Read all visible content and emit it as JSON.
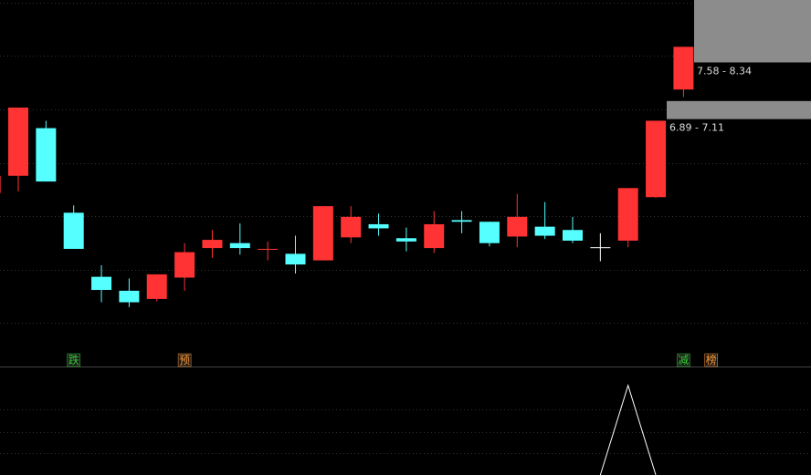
{
  "chart_data": {
    "type": "candlestick",
    "categories": [
      null,
      null,
      null,
      null,
      null,
      null,
      null,
      null,
      null,
      null,
      null,
      null,
      null,
      null,
      null,
      null,
      null,
      null,
      null,
      null,
      null,
      null,
      null,
      null,
      null,
      null,
      null
    ],
    "open": [
      5.99,
      6.2,
      6.78,
      5.75,
      4.97,
      4.8,
      4.7,
      4.96,
      5.32,
      5.38,
      5.3,
      5.25,
      5.17,
      5.45,
      5.61,
      5.44,
      5.32,
      5.66,
      5.64,
      5.46,
      5.58,
      5.54,
      5.33,
      5.41,
      5.94,
      7.25,
      null
    ],
    "high": [
      6.2,
      7.03,
      6.87,
      5.84,
      5.11,
      4.95,
      5.0,
      5.38,
      5.54,
      5.62,
      5.4,
      5.47,
      5.83,
      5.83,
      5.74,
      5.57,
      5.77,
      5.77,
      5.64,
      5.98,
      5.88,
      5.7,
      5.5,
      6.05,
      6.87,
      7.77,
      null
    ],
    "low": [
      5.84,
      6.01,
      6.13,
      5.31,
      4.66,
      4.6,
      4.67,
      4.8,
      5.2,
      5.24,
      5.17,
      5.01,
      5.17,
      5.38,
      5.47,
      5.28,
      5.26,
      5.5,
      5.34,
      5.33,
      5.43,
      5.38,
      5.16,
      5.33,
      5.93,
      7.16,
      null
    ],
    "close": [
      6.2,
      7.03,
      6.13,
      5.31,
      4.81,
      4.66,
      5.0,
      5.27,
      5.42,
      5.32,
      5.31,
      5.12,
      5.83,
      5.7,
      5.56,
      5.4,
      5.61,
      5.64,
      5.38,
      5.7,
      5.47,
      5.41,
      5.33,
      6.05,
      6.87,
      7.77,
      null
    ],
    "up_color": "#ff3333",
    "down_color": "#55ffff",
    "flat_color": "#ffffff",
    "ylim": [
      3.9,
      8.34
    ],
    "zones": [
      {
        "low": 7.58,
        "high": 8.34,
        "label": "7.58 - 8.34"
      },
      {
        "low": 6.89,
        "high": 7.11,
        "label": "6.89 - 7.11"
      }
    ],
    "signals": [
      {
        "index": 3,
        "label": "跌",
        "color": "#33cc33"
      },
      {
        "index": 7,
        "label": "预",
        "color": "#ff9933"
      },
      {
        "index": 25,
        "label": "减",
        "color": "#33cc33"
      },
      {
        "index": 26,
        "label": "榜",
        "color": "#ff9933"
      }
    ],
    "indicator": {
      "values": [
        null,
        null,
        null,
        null,
        null,
        null,
        null,
        null,
        null,
        null,
        null,
        null,
        null,
        null,
        null,
        null,
        null,
        null,
        null,
        null,
        null,
        null,
        0,
        100,
        0,
        null,
        null
      ],
      "color": "#ffffff",
      "ylim": [
        0,
        120
      ]
    }
  }
}
